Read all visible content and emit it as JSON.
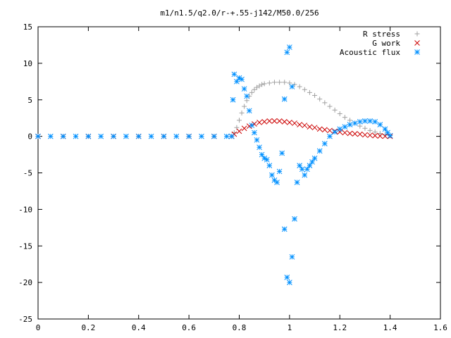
{
  "chart_data": {
    "type": "scatter",
    "title": "m1/n1.5/q2.0/r-+.55-j142/M50.0/256",
    "xlabel": "",
    "ylabel": "",
    "xlim": [
      0,
      1.6
    ],
    "ylim": [
      -25,
      15
    ],
    "x_ticks": [
      "0",
      "0.2",
      "0.4",
      "0.6",
      "0.8",
      "1",
      "1.2",
      "1.4",
      "1.6"
    ],
    "y_ticks": [
      "15",
      "10",
      "5",
      "0",
      "-5",
      "-10",
      "-15",
      "-20",
      "-25"
    ],
    "grid": false,
    "legend_position": "top-right",
    "series": [
      {
        "name": "R stress",
        "marker": "plus",
        "color": "#a0a0a0",
        "points": [
          [
            0.0,
            0
          ],
          [
            0.1,
            0
          ],
          [
            0.2,
            0
          ],
          [
            0.3,
            0
          ],
          [
            0.4,
            0
          ],
          [
            0.5,
            0
          ],
          [
            0.6,
            0
          ],
          [
            0.7,
            0
          ],
          [
            0.77,
            0
          ],
          [
            0.78,
            0.5
          ],
          [
            0.79,
            1.2
          ],
          [
            0.8,
            2.2
          ],
          [
            0.81,
            3.2
          ],
          [
            0.82,
            4.1
          ],
          [
            0.83,
            4.9
          ],
          [
            0.84,
            5.5
          ],
          [
            0.85,
            6.0
          ],
          [
            0.86,
            6.4
          ],
          [
            0.87,
            6.7
          ],
          [
            0.88,
            6.9
          ],
          [
            0.89,
            7.1
          ],
          [
            0.9,
            7.2
          ],
          [
            0.92,
            7.3
          ],
          [
            0.94,
            7.4
          ],
          [
            0.96,
            7.4
          ],
          [
            0.98,
            7.4
          ],
          [
            1.0,
            7.3
          ],
          [
            1.02,
            7.1
          ],
          [
            1.04,
            6.8
          ],
          [
            1.06,
            6.4
          ],
          [
            1.08,
            6.0
          ],
          [
            1.1,
            5.6
          ],
          [
            1.12,
            5.1
          ],
          [
            1.14,
            4.6
          ],
          [
            1.16,
            4.1
          ],
          [
            1.18,
            3.6
          ],
          [
            1.2,
            3.1
          ],
          [
            1.22,
            2.6
          ],
          [
            1.24,
            2.2
          ],
          [
            1.26,
            1.8
          ],
          [
            1.28,
            1.4
          ],
          [
            1.3,
            1.1
          ],
          [
            1.32,
            0.8
          ],
          [
            1.34,
            0.6
          ],
          [
            1.36,
            0.4
          ],
          [
            1.38,
            0.2
          ],
          [
            1.4,
            0.1
          ]
        ]
      },
      {
        "name": "G work",
        "marker": "cross",
        "color": "#cc0000",
        "points": [
          [
            0.0,
            0
          ],
          [
            0.1,
            0
          ],
          [
            0.2,
            0
          ],
          [
            0.3,
            0
          ],
          [
            0.4,
            0
          ],
          [
            0.5,
            0
          ],
          [
            0.6,
            0
          ],
          [
            0.7,
            0
          ],
          [
            0.77,
            0
          ],
          [
            0.78,
            0.3
          ],
          [
            0.8,
            0.7
          ],
          [
            0.82,
            1.1
          ],
          [
            0.84,
            1.4
          ],
          [
            0.86,
            1.7
          ],
          [
            0.88,
            1.9
          ],
          [
            0.9,
            2.0
          ],
          [
            0.92,
            2.1
          ],
          [
            0.94,
            2.1
          ],
          [
            0.96,
            2.1
          ],
          [
            0.98,
            2.0
          ],
          [
            1.0,
            1.9
          ],
          [
            1.02,
            1.8
          ],
          [
            1.04,
            1.6
          ],
          [
            1.06,
            1.5
          ],
          [
            1.08,
            1.3
          ],
          [
            1.1,
            1.2
          ],
          [
            1.12,
            1.0
          ],
          [
            1.14,
            0.9
          ],
          [
            1.16,
            0.8
          ],
          [
            1.18,
            0.7
          ],
          [
            1.2,
            0.6
          ],
          [
            1.22,
            0.5
          ],
          [
            1.24,
            0.4
          ],
          [
            1.26,
            0.35
          ],
          [
            1.28,
            0.3
          ],
          [
            1.3,
            0.2
          ],
          [
            1.32,
            0.15
          ],
          [
            1.34,
            0.1
          ],
          [
            1.36,
            0.05
          ],
          [
            1.38,
            0.02
          ],
          [
            1.4,
            0
          ]
        ]
      },
      {
        "name": "Acoustic flux",
        "marker": "star",
        "color": "#0090ff",
        "points": [
          [
            0.0,
            0
          ],
          [
            0.05,
            0
          ],
          [
            0.1,
            0
          ],
          [
            0.15,
            0
          ],
          [
            0.2,
            0
          ],
          [
            0.25,
            0
          ],
          [
            0.3,
            0
          ],
          [
            0.35,
            0
          ],
          [
            0.4,
            0
          ],
          [
            0.45,
            0
          ],
          [
            0.5,
            0
          ],
          [
            0.55,
            0
          ],
          [
            0.6,
            0
          ],
          [
            0.65,
            0
          ],
          [
            0.7,
            0
          ],
          [
            0.75,
            0
          ],
          [
            0.77,
            0
          ],
          [
            0.775,
            5.0
          ],
          [
            0.78,
            8.5
          ],
          [
            0.79,
            7.5
          ],
          [
            0.8,
            8.0
          ],
          [
            0.81,
            7.8
          ],
          [
            0.82,
            6.5
          ],
          [
            0.83,
            5.5
          ],
          [
            0.84,
            3.5
          ],
          [
            0.85,
            1.5
          ],
          [
            0.86,
            0.5
          ],
          [
            0.87,
            -0.5
          ],
          [
            0.88,
            -1.5
          ],
          [
            0.89,
            -2.5
          ],
          [
            0.9,
            -3.0
          ],
          [
            0.91,
            -3.2
          ],
          [
            0.92,
            -4.0
          ],
          [
            0.93,
            -5.3
          ],
          [
            0.94,
            -6.0
          ],
          [
            0.95,
            -6.3
          ],
          [
            0.96,
            -4.8
          ],
          [
            0.97,
            -2.3
          ],
          [
            0.98,
            5.1
          ],
          [
            0.99,
            11.5
          ],
          [
            1.0,
            12.2
          ],
          [
            1.01,
            6.8
          ],
          [
            1.02,
            -11.3
          ],
          [
            1.03,
            -6.3
          ],
          [
            1.04,
            -4.0
          ],
          [
            1.05,
            -4.5
          ],
          [
            1.06,
            -5.3
          ],
          [
            1.07,
            -4.5
          ],
          [
            1.08,
            -4.0
          ],
          [
            1.09,
            -3.5
          ],
          [
            1.1,
            -3.0
          ],
          [
            1.12,
            -2.0
          ],
          [
            1.14,
            -1.0
          ],
          [
            1.16,
            0.0
          ],
          [
            1.18,
            0.6
          ],
          [
            1.2,
            1.0
          ],
          [
            1.22,
            1.3
          ],
          [
            1.24,
            1.6
          ],
          [
            1.26,
            1.8
          ],
          [
            1.28,
            2.0
          ],
          [
            1.3,
            2.1
          ],
          [
            1.32,
            2.1
          ],
          [
            1.34,
            2.0
          ],
          [
            1.36,
            1.6
          ],
          [
            1.38,
            1.0
          ],
          [
            1.39,
            0.5
          ],
          [
            1.4,
            0.1
          ],
          [
            0.98,
            -12.7
          ],
          [
            0.99,
            -19.3
          ],
          [
            1.0,
            -20.0
          ],
          [
            1.01,
            -16.5
          ]
        ]
      }
    ]
  }
}
